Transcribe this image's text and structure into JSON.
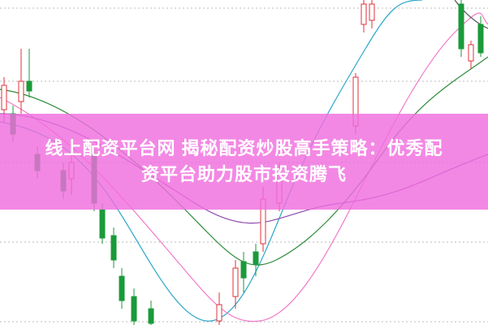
{
  "banner": {
    "title_lines": [
      "线上配资平台网 揭秘配资炒股高手策略：优秀配",
      "资平台助力股市投资腾飞"
    ]
  }
}
